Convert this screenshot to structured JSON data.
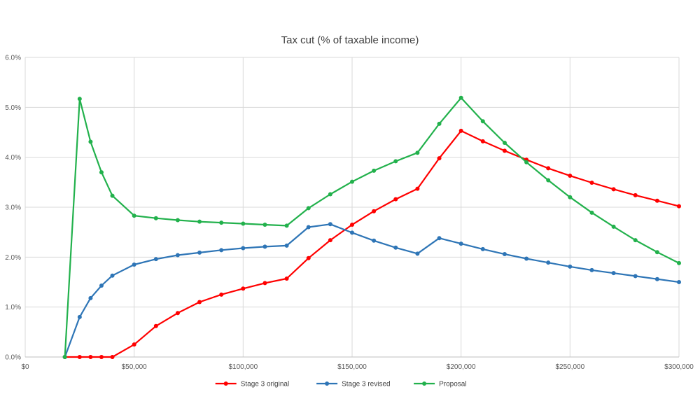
{
  "chart_data": {
    "type": "line",
    "title": "Tax cut (% of taxable income)",
    "xlabel": "",
    "ylabel": "",
    "xlim": [
      0,
      300000
    ],
    "ylim": [
      0,
      0.06
    ],
    "grid": true,
    "legend_position": "bottom",
    "x_ticks": [
      {
        "value": 0,
        "label": "$0"
      },
      {
        "value": 50000,
        "label": "$50,000"
      },
      {
        "value": 100000,
        "label": "$100,000"
      },
      {
        "value": 150000,
        "label": "$150,000"
      },
      {
        "value": 200000,
        "label": "$200,000"
      },
      {
        "value": 250000,
        "label": "$250,000"
      },
      {
        "value": 300000,
        "label": "$300,000"
      }
    ],
    "y_ticks": [
      {
        "value": 0.0,
        "label": "0.0%"
      },
      {
        "value": 0.01,
        "label": "1.0%"
      },
      {
        "value": 0.02,
        "label": "2.0%"
      },
      {
        "value": 0.03,
        "label": "3.0%"
      },
      {
        "value": 0.04,
        "label": "4.0%"
      },
      {
        "value": 0.05,
        "label": "5.0%"
      },
      {
        "value": 0.06,
        "label": "6.0%"
      }
    ],
    "series": [
      {
        "name": "Stage 3 original",
        "key": "stage3-original",
        "color": "#ff0000",
        "x": [
          18200,
          25000,
          30000,
          35000,
          40000,
          50000,
          60000,
          70000,
          80000,
          90000,
          100000,
          110000,
          120000,
          130000,
          140000,
          150000,
          160000,
          170000,
          180000,
          190000,
          200000,
          210000,
          220000,
          230000,
          240000,
          250000,
          260000,
          270000,
          280000,
          290000,
          300000
        ],
        "values": [
          0.0,
          0.0,
          0.0,
          0.0,
          0.0,
          0.0025,
          0.0062,
          0.0088,
          0.011,
          0.0125,
          0.0137,
          0.0148,
          0.0157,
          0.0198,
          0.0234,
          0.0265,
          0.0292,
          0.0316,
          0.0337,
          0.0398,
          0.0453,
          0.0432,
          0.0413,
          0.0395,
          0.0378,
          0.0363,
          0.0349,
          0.0336,
          0.0324,
          0.0313,
          0.0302
        ]
      },
      {
        "name": "Stage 3 revised",
        "key": "stage3-revised",
        "color": "#2e75b6",
        "x": [
          18200,
          25000,
          30000,
          35000,
          40000,
          50000,
          60000,
          70000,
          80000,
          90000,
          100000,
          110000,
          120000,
          130000,
          140000,
          150000,
          160000,
          170000,
          180000,
          190000,
          200000,
          210000,
          220000,
          230000,
          240000,
          250000,
          260000,
          270000,
          280000,
          290000,
          300000
        ],
        "values": [
          0.0,
          0.008,
          0.0118,
          0.0143,
          0.0163,
          0.0185,
          0.0196,
          0.0204,
          0.0209,
          0.0214,
          0.0218,
          0.0221,
          0.0223,
          0.026,
          0.0266,
          0.0249,
          0.0233,
          0.0219,
          0.0207,
          0.0238,
          0.0227,
          0.0216,
          0.0206,
          0.0197,
          0.0189,
          0.0181,
          0.0174,
          0.0168,
          0.0162,
          0.0156,
          0.015
        ]
      },
      {
        "name": "Proposal",
        "key": "proposal",
        "color": "#22b14c",
        "x": [
          18200,
          25000,
          30000,
          35000,
          40000,
          50000,
          60000,
          70000,
          80000,
          90000,
          100000,
          110000,
          120000,
          130000,
          140000,
          150000,
          160000,
          170000,
          180000,
          190000,
          200000,
          210000,
          220000,
          230000,
          240000,
          250000,
          260000,
          270000,
          280000,
          290000,
          300000
        ],
        "values": [
          0.0,
          0.0517,
          0.0431,
          0.037,
          0.0323,
          0.0283,
          0.0278,
          0.0274,
          0.0271,
          0.0269,
          0.0267,
          0.0265,
          0.0263,
          0.0298,
          0.0326,
          0.0351,
          0.0373,
          0.0392,
          0.0409,
          0.0467,
          0.0519,
          0.0472,
          0.0429,
          0.039,
          0.0354,
          0.032,
          0.0289,
          0.0261,
          0.0234,
          0.021,
          0.0188
        ]
      }
    ]
  }
}
